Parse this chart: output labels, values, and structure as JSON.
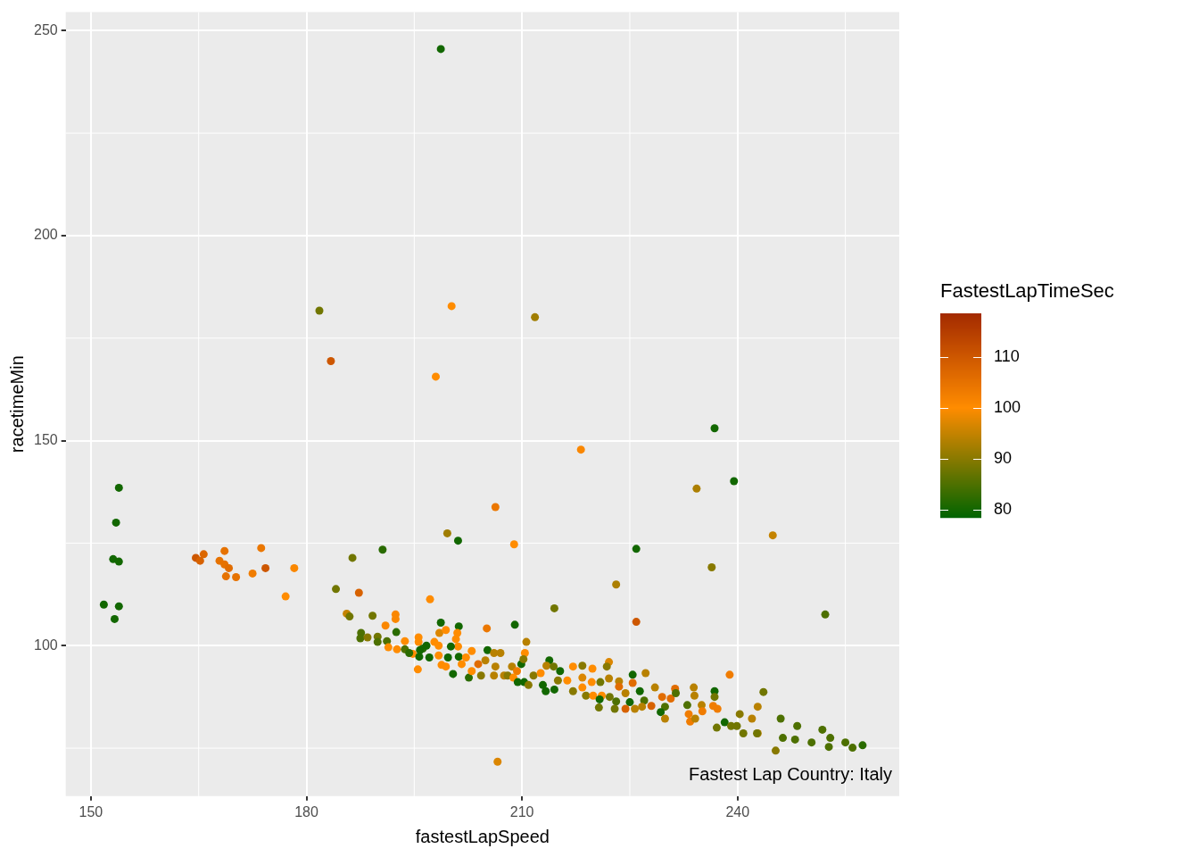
{
  "chart_data": {
    "type": "scatter",
    "xlabel": "fastestLapSpeed",
    "ylabel": "racetimeMin",
    "clabel": "FastestLapTimeSec",
    "annotations": [
      "Fastest Lap Country: Italy"
    ],
    "xlim": [
      146.5,
      262.5
    ],
    "ylim": [
      63.3,
      254.5
    ],
    "xticks": [
      150,
      180,
      210,
      240
    ],
    "yticks": [
      100,
      150,
      200,
      250
    ],
    "clim": [
      78.5,
      118.5
    ],
    "cticks": [
      80,
      90,
      100,
      110
    ],
    "grid": true,
    "legend": false,
    "marker": "circle",
    "series": [
      {
        "x": [
          198.7,
          181.8,
          183.4,
          200.2,
          211.8,
          198.0,
          218.2,
          236.8,
          239.5,
          234.3,
          244.9,
          236.4,
          252.2,
          225.9,
          223.1,
          214.5,
          225.9,
          206.3,
          208.9,
          199.6,
          201.1,
          206.6,
          190.6,
          153.9,
          153.5,
          153.1,
          153.9,
          151.8,
          153.9,
          153.3,
          164.6,
          165.7,
          165.2,
          168.6,
          167.9,
          168.6,
          169.2,
          168.8,
          170.2,
          172.5,
          173.7,
          174.3,
          178.3,
          177.1,
          184.1,
          186.4,
          187.3,
          197.2,
          185.6,
          186.0,
          189.2,
          192.4,
          192.4,
          191.0,
          198.7,
          201.2,
          205.1,
          209.0,
          187.6,
          187.5,
          188.5,
          189.9,
          189.9,
          191.2,
          192.5,
          191.4,
          193.7,
          192.6,
          195.6,
          195.6,
          194.8,
          193.7,
          194.3,
          196.2,
          195.8,
          196.7,
          195.7,
          197.1,
          195.5,
          197.8,
          198.4,
          198.5,
          199.4,
          201.0,
          200.8,
          201.1,
          198.4,
          198.8,
          199.4,
          200.1,
          199.7,
          201.2,
          200.4,
          203.0,
          201.6,
          202.2,
          202.6,
          203.9,
          203.0,
          204.3,
          205.2,
          206.1,
          207.0,
          204.9,
          206.3,
          207.5,
          206.1,
          208.6,
          208.0,
          209.3,
          208.8,
          209.9,
          210.4,
          210.6,
          210.2,
          209.4,
          210.3,
          210.9,
          211.6,
          212.6,
          213.8,
          213.4,
          214.4,
          215.3,
          212.9,
          213.3,
          214.5,
          215.0,
          216.3,
          217.1,
          218.4,
          218.4,
          219.8,
          219.7,
          218.4,
          217.1,
          218.9,
          219.9,
          220.9,
          222.1,
          221.8,
          222.1,
          221.1,
          222.2,
          220.8,
          220.7,
          225.4,
          227.2,
          223.5,
          225.4,
          223.5,
          226.4,
          224.4,
          228.5,
          231.3,
          229.5,
          230.7,
          231.4,
          227.0,
          225.0,
          223.1,
          222.9,
          224.4,
          225.7,
          226.7,
          228.0,
          229.9,
          229.3,
          229.9,
          233.0,
          233.9,
          234.0,
          235.0,
          233.2,
          233.4,
          234.1,
          235.1,
          236.6,
          237.2,
          236.8,
          236.8,
          238.9,
          238.2,
          237.1,
          239.1,
          239.9,
          240.3,
          240.8,
          242.0,
          242.8,
          242.8,
          243.6,
          242.7,
          246.0,
          248.3,
          246.3,
          248.0,
          245.3,
          250.3,
          251.8,
          252.9,
          252.7,
          255.0,
          256.0,
          257.4
        ],
        "values": [
          245.5,
          181.7,
          169.4,
          182.8,
          180.1,
          165.6,
          147.8,
          153.0,
          140.1,
          138.3,
          126.9,
          119.1,
          107.6,
          123.6,
          114.9,
          109.1,
          105.8,
          133.8,
          124.7,
          127.4,
          125.6,
          71.7,
          123.4,
          138.5,
          130.0,
          121.1,
          120.5,
          110.0,
          109.6,
          106.5,
          121.4,
          122.3,
          120.7,
          123.1,
          120.7,
          119.8,
          118.9,
          116.9,
          116.7,
          117.6,
          123.8,
          118.9,
          118.9,
          112.0,
          113.8,
          121.4,
          112.9,
          111.3,
          107.8,
          107.1,
          107.3,
          107.6,
          106.5,
          104.9,
          105.6,
          104.7,
          104.2,
          105.1,
          103.1,
          101.8,
          102.0,
          102.2,
          100.9,
          101.1,
          103.3,
          99.6,
          101.1,
          99.1,
          102.0,
          100.9,
          98.0,
          99.1,
          98.2,
          99.3,
          98.9,
          100.0,
          97.3,
          97.1,
          94.2,
          100.9,
          100.0,
          103.1,
          103.8,
          103.1,
          101.6,
          99.8,
          97.6,
          95.3,
          94.9,
          99.8,
          97.1,
          97.3,
          93.1,
          98.7,
          95.5,
          97.1,
          92.2,
          95.5,
          93.8,
          92.7,
          98.9,
          98.2,
          98.2,
          96.4,
          94.9,
          92.7,
          92.7,
          94.9,
          92.7,
          93.8,
          92.2,
          95.5,
          98.2,
          100.9,
          96.7,
          91.1,
          91.1,
          90.4,
          92.7,
          93.3,
          96.4,
          95.1,
          94.9,
          93.8,
          90.4,
          88.9,
          89.3,
          91.5,
          91.5,
          94.9,
          95.1,
          92.2,
          94.4,
          91.1,
          89.8,
          88.9,
          87.8,
          87.8,
          91.1,
          96.0,
          94.9,
          92.0,
          87.8,
          87.5,
          86.9,
          84.9,
          92.9,
          93.3,
          91.3,
          90.9,
          90.0,
          88.9,
          88.4,
          89.8,
          89.5,
          87.5,
          87.1,
          88.4,
          86.6,
          86.2,
          86.4,
          84.6,
          84.6,
          84.6,
          85.1,
          85.3,
          85.1,
          83.8,
          82.2,
          85.5,
          89.8,
          87.8,
          85.5,
          83.3,
          81.5,
          82.2,
          84.0,
          85.3,
          84.6,
          88.9,
          87.5,
          92.9,
          81.3,
          80.0,
          80.4,
          80.4,
          83.3,
          78.6,
          82.2,
          85.1,
          78.6,
          88.7,
          78.6,
          82.2,
          80.4,
          77.5,
          77.1,
          74.4,
          76.4,
          79.5,
          77.5,
          75.3,
          76.4,
          75.1,
          75.7
        ],
        "cvalues": [
          80,
          88,
          110,
          100,
          92,
          100,
          101,
          80,
          80,
          93,
          95,
          90,
          85,
          80,
          93,
          88,
          110,
          104,
          100,
          92,
          80,
          97,
          82,
          80,
          80,
          80,
          80,
          80,
          80,
          80,
          110,
          107,
          108,
          105,
          105,
          105,
          106,
          105,
          105,
          103,
          104,
          110,
          101,
          100,
          88,
          88,
          108,
          100,
          95,
          88,
          88,
          101,
          101,
          101,
          80,
          80,
          104,
          80,
          85,
          85,
          90,
          88,
          85,
          85,
          82,
          100,
          100,
          100,
          100,
          100,
          100,
          85,
          82,
          82,
          80,
          80,
          80,
          80,
          100,
          100,
          100,
          97,
          100,
          100,
          100,
          100,
          100,
          100,
          100,
          80,
          80,
          80,
          80,
          100,
          100,
          100,
          82,
          106,
          100,
          90,
          80,
          94,
          94,
          94,
          94,
          94,
          94,
          94,
          90,
          103,
          100,
          80,
          100,
          94,
          90,
          80,
          80,
          90,
          90,
          100,
          80,
          94,
          88,
          80,
          80,
          80,
          80,
          90,
          100,
          100,
          90,
          97,
          100,
          100,
          100,
          90,
          90,
          100,
          88,
          97,
          90,
          94,
          100,
          88,
          80,
          88,
          80,
          94,
          94,
          106,
          106,
          80,
          94,
          94,
          106,
          106,
          106,
          85,
          85,
          80,
          85,
          88,
          108,
          94,
          94,
          108,
          85,
          80,
          94,
          85,
          94,
          94,
          94,
          103,
          103,
          94,
          103,
          103,
          103,
          80,
          88,
          103,
          80,
          88,
          88,
          88,
          90,
          88,
          94,
          94,
          94,
          88,
          88,
          85,
          85,
          85,
          85,
          90,
          85,
          85,
          85,
          85,
          85,
          85,
          82
        ]
      }
    ]
  }
}
